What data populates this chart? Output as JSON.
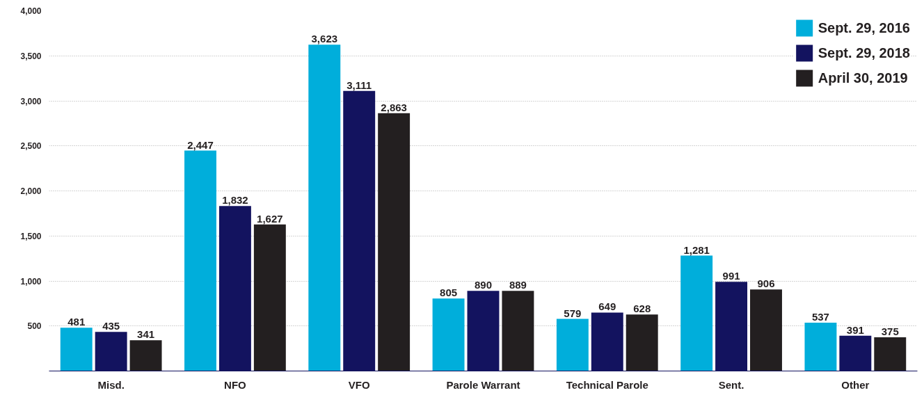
{
  "chart_data": {
    "type": "bar",
    "categories": [
      "Misd.",
      "NFO",
      "VFO",
      "Parole Warrant",
      "Technical Parole",
      "Sent.",
      "Other"
    ],
    "series": [
      {
        "name": "Sept. 29, 2016",
        "color": "#00aedb",
        "values": [
          481,
          2447,
          3623,
          805,
          579,
          1281,
          537
        ],
        "value_labels": [
          "481",
          "2,447",
          "3,623",
          "805",
          "579",
          "1,281",
          "537"
        ]
      },
      {
        "name": "Sept. 29, 2018",
        "color": "#13135f",
        "values": [
          435,
          1832,
          3111,
          890,
          649,
          991,
          391
        ],
        "value_labels": [
          "435",
          "1,832",
          "3,111",
          "890",
          "649",
          "991",
          "391"
        ]
      },
      {
        "name": "April 30, 2019",
        "color": "#231f20",
        "values": [
          341,
          1627,
          2863,
          889,
          628,
          906,
          375
        ],
        "value_labels": [
          "341",
          "1,627",
          "2,863",
          "889",
          "628",
          "906",
          "375"
        ]
      }
    ],
    "ylim": [
      0,
      4000
    ],
    "yticks": [
      500,
      {
        "value": 1000,
        "label": "1,000"
      },
      {
        "value": 1500,
        "label": "1,500"
      },
      {
        "value": 2000,
        "label": "2,000"
      },
      {
        "value": 2500,
        "label": "2,500"
      },
      {
        "value": 3000,
        "label": "3,000"
      },
      {
        "value": 3500,
        "label": "3,500"
      },
      {
        "value": 4000,
        "label": "4,000"
      }
    ],
    "grid": "y",
    "legend": "top right"
  }
}
